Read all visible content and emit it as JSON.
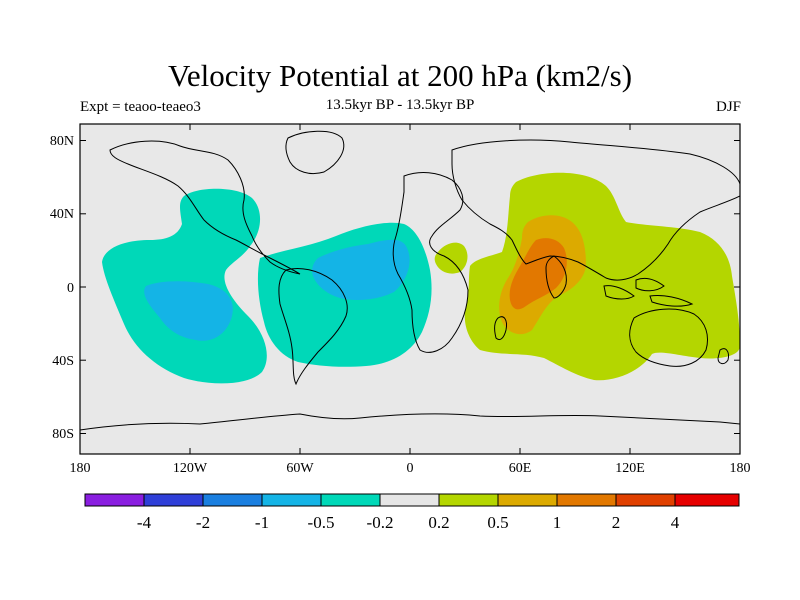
{
  "title": "Velocity Potential at 200 hPa (km2/s)",
  "subtitle": "13.5kyr BP - 13.5kyr BP",
  "left_label": "Expt = teaoo-teaeo3",
  "right_label": "DJF",
  "lat_ticks": [
    "80N",
    "40N",
    "0",
    "40S",
    "80S"
  ],
  "lon_ticks": [
    "180",
    "120W",
    "60W",
    "0",
    "60E",
    "120E",
    "180"
  ],
  "colorbar": {
    "colors": [
      "#8a1ee0",
      "#2f3fd8",
      "#1a7fe0",
      "#14b4e6",
      "#00d8b8",
      "#e6e6e6",
      "#b4d600",
      "#dcaa00",
      "#e27800",
      "#e04000",
      "#e60000"
    ],
    "labels": [
      "-4",
      "-2",
      "-1",
      "-0.5",
      "-0.2",
      "0.2",
      "0.5",
      "1",
      "2",
      "4"
    ]
  },
  "map": {
    "background": "#e8e8e8",
    "regions": [
      {
        "name": "negative-region-pacific",
        "level": "-0.5 to -0.2",
        "color": "#00d8b8"
      },
      {
        "name": "negative-region-atlantic",
        "level": "-0.5 to -0.2",
        "color": "#00d8b8"
      },
      {
        "name": "negative-core-pacific",
        "level": "-1 to -0.5",
        "color": "#14b4e6"
      },
      {
        "name": "negative-core-atlantic",
        "level": "-1 to -0.5",
        "color": "#14b4e6"
      },
      {
        "name": "positive-region-indian",
        "level": "0.2 to 0.5",
        "color": "#b4d600"
      },
      {
        "name": "positive-core-indian",
        "level": "0.5 to 1",
        "color": "#dcaa00"
      },
      {
        "name": "positive-max-indian",
        "level": "1 to 2",
        "color": "#e27800"
      }
    ]
  }
}
